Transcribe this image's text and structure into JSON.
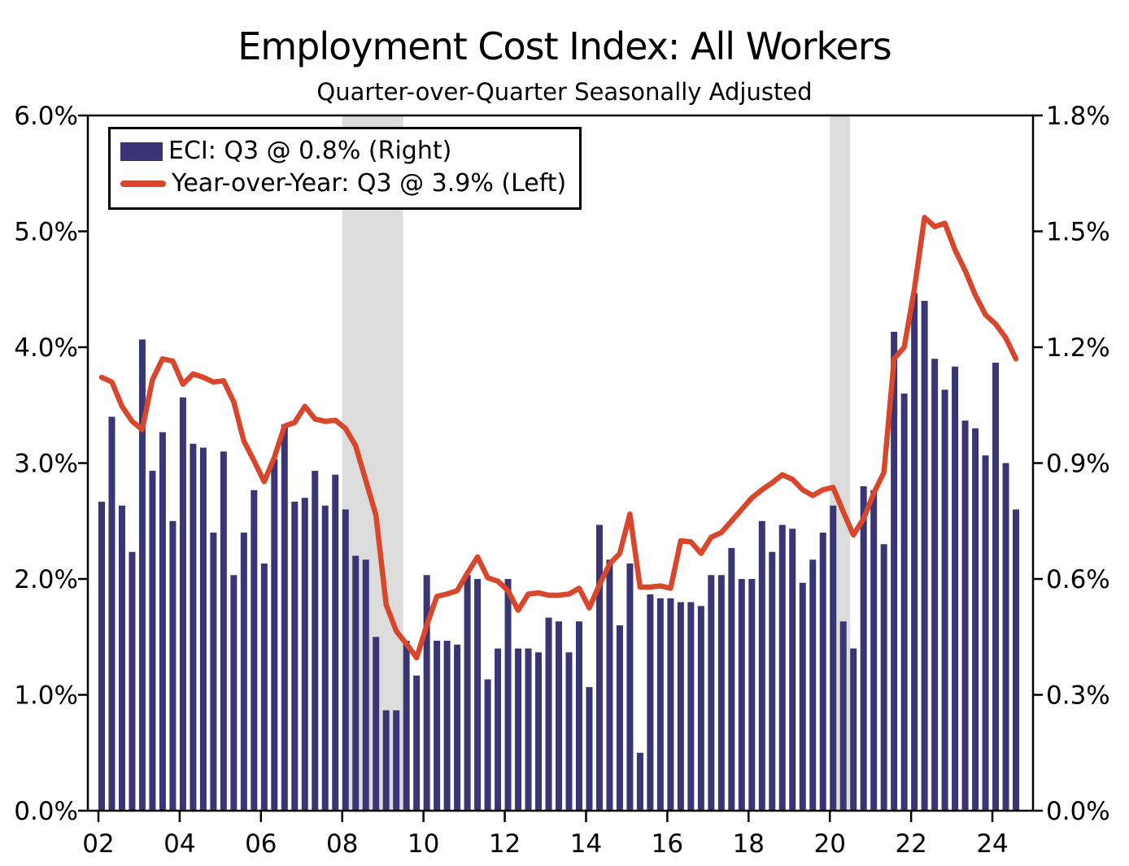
{
  "title": "Employment Cost Index: All Workers",
  "subtitle": "Quarter-over-Quarter Seasonally Adjusted",
  "colors": {
    "bar": "#3a3574",
    "line": "#d8472b",
    "recession_band": "#dcdcdc",
    "axis": "#000000",
    "background": "#ffffff",
    "text": "#000000"
  },
  "legend": {
    "items": [
      {
        "label": "ECI: Q3 @ 0.8% (Right)",
        "marker": "bar-swatch"
      },
      {
        "label": "Year-over-Year: Q3 @ 3.9% (Left)",
        "marker": "line-swatch"
      }
    ]
  },
  "axes": {
    "left": {
      "labels": [
        "6.0%",
        "5.0%",
        "4.0%",
        "3.0%",
        "2.0%",
        "1.0%",
        "0.0%"
      ],
      "values": [
        6.0,
        5.0,
        4.0,
        3.0,
        2.0,
        1.0,
        0.0
      ]
    },
    "right": {
      "labels": [
        "1.8%",
        "1.5%",
        "1.2%",
        "0.9%",
        "0.6%",
        "0.3%",
        "0.0%"
      ],
      "values": [
        1.8,
        1.5,
        1.2,
        0.9,
        0.6,
        0.3,
        0.0
      ]
    },
    "x": {
      "labels": [
        "02",
        "04",
        "06",
        "08",
        "10",
        "12",
        "14",
        "16",
        "18",
        "20",
        "22",
        "24"
      ],
      "values": [
        2002,
        2004,
        2006,
        2008,
        2010,
        2012,
        2014,
        2016,
        2018,
        2020,
        2022,
        2024
      ]
    }
  },
  "chart_data": {
    "type": "bar",
    "x_start_year": 2002,
    "x_step_years": 0.25,
    "title": "Employment Cost Index: All Workers",
    "subtitle": "Quarter-over-Quarter Seasonally Adjusted",
    "ylim_left": [
      0,
      6
    ],
    "ylim_right": [
      0,
      1.8
    ],
    "xlim": [
      2001.74,
      2025.0
    ],
    "grid": false,
    "legend_position": "top-left",
    "recession_bands": [
      [
        2008.0,
        2009.5
      ],
      [
        2020.0,
        2020.5
      ]
    ],
    "series": [
      {
        "name": "ECI: Q3 @ 0.8% (Right)",
        "type": "bar",
        "axis": "right",
        "values": [
          0.8,
          1.02,
          0.79,
          0.67,
          1.22,
          0.88,
          0.98,
          0.75,
          1.07,
          0.95,
          0.94,
          0.72,
          0.93,
          0.61,
          0.72,
          0.83,
          0.64,
          0.91,
          1.0,
          0.8,
          0.81,
          0.88,
          0.79,
          0.87,
          0.78,
          0.66,
          0.65,
          0.45,
          0.26,
          0.26,
          0.44,
          0.35,
          0.61,
          0.44,
          0.44,
          0.43,
          0.61,
          0.6,
          0.34,
          0.42,
          0.6,
          0.42,
          0.42,
          0.41,
          0.5,
          0.49,
          0.41,
          0.49,
          0.32,
          0.74,
          0.65,
          0.48,
          0.64,
          0.15,
          0.56,
          0.55,
          0.55,
          0.54,
          0.54,
          0.53,
          0.61,
          0.61,
          0.68,
          0.6,
          0.6,
          0.75,
          0.67,
          0.74,
          0.73,
          0.59,
          0.65,
          0.72,
          0.79,
          0.49,
          0.42,
          0.84,
          0.83,
          0.69,
          1.24,
          1.08,
          1.34,
          1.32,
          1.17,
          1.09,
          1.15,
          1.01,
          0.99,
          0.92,
          1.16,
          0.9,
          0.78
        ]
      },
      {
        "name": "Year-over-Year: Q3 @ 3.9% (Left)",
        "type": "line",
        "axis": "left",
        "values": [
          3.74,
          3.7,
          3.49,
          3.36,
          3.29,
          3.72,
          3.9,
          3.88,
          3.68,
          3.77,
          3.74,
          3.7,
          3.71,
          3.53,
          3.19,
          3.02,
          2.84,
          3.05,
          3.32,
          3.35,
          3.49,
          3.38,
          3.36,
          3.37,
          3.3,
          3.15,
          2.85,
          2.55,
          1.78,
          1.55,
          1.44,
          1.32,
          1.6,
          1.85,
          1.87,
          1.9,
          2.05,
          2.19,
          2.01,
          1.98,
          1.9,
          1.73,
          1.87,
          1.88,
          1.86,
          1.86,
          1.87,
          1.92,
          1.75,
          1.95,
          2.13,
          2.22,
          2.56,
          1.93,
          1.93,
          1.94,
          1.92,
          2.33,
          2.32,
          2.22,
          2.36,
          2.4,
          2.5,
          2.6,
          2.7,
          2.77,
          2.83,
          2.9,
          2.86,
          2.77,
          2.72,
          2.77,
          2.79,
          2.58,
          2.38,
          2.52,
          2.74,
          2.92,
          3.9,
          4.0,
          4.5,
          5.12,
          5.04,
          5.07,
          4.84,
          4.66,
          4.45,
          4.28,
          4.2,
          4.08,
          3.9
        ]
      }
    ]
  }
}
